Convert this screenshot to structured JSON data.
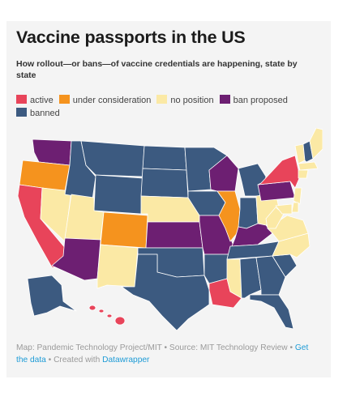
{
  "title": "Vaccine passports in the US",
  "subtitle": "How rollout—or bans—of vaccine credentials are happening, state by state",
  "legend": [
    {
      "label": "active",
      "color": "#e8445a"
    },
    {
      "label": "under consideration",
      "color": "#f5931e"
    },
    {
      "label": "no position",
      "color": "#fbe9a5"
    },
    {
      "label": "ban proposed",
      "color": "#6d1f72"
    },
    {
      "label": "banned",
      "color": "#3c5a80"
    }
  ],
  "states": [
    {
      "code": "WA",
      "status": "ban proposed"
    },
    {
      "code": "OR",
      "status": "under consideration"
    },
    {
      "code": "CA",
      "status": "active"
    },
    {
      "code": "NV",
      "status": "no position"
    },
    {
      "code": "ID",
      "status": "banned"
    },
    {
      "code": "MT",
      "status": "banned"
    },
    {
      "code": "WY",
      "status": "banned"
    },
    {
      "code": "UT",
      "status": "no position"
    },
    {
      "code": "AZ",
      "status": "ban proposed"
    },
    {
      "code": "CO",
      "status": "under consideration"
    },
    {
      "code": "NM",
      "status": "no position"
    },
    {
      "code": "ND",
      "status": "banned"
    },
    {
      "code": "SD",
      "status": "banned"
    },
    {
      "code": "NE",
      "status": "no position"
    },
    {
      "code": "KS",
      "status": "ban proposed"
    },
    {
      "code": "OK",
      "status": "banned"
    },
    {
      "code": "TX",
      "status": "banned"
    },
    {
      "code": "MN",
      "status": "banned"
    },
    {
      "code": "IA",
      "status": "banned"
    },
    {
      "code": "MO",
      "status": "ban proposed"
    },
    {
      "code": "AR",
      "status": "banned"
    },
    {
      "code": "LA",
      "status": "active"
    },
    {
      "code": "WI",
      "status": "ban proposed"
    },
    {
      "code": "IL",
      "status": "under consideration"
    },
    {
      "code": "MI",
      "status": "banned"
    },
    {
      "code": "IN",
      "status": "banned"
    },
    {
      "code": "OH",
      "status": "no position"
    },
    {
      "code": "KY",
      "status": "ban proposed"
    },
    {
      "code": "TN",
      "status": "banned"
    },
    {
      "code": "MS",
      "status": "no position"
    },
    {
      "code": "AL",
      "status": "banned"
    },
    {
      "code": "GA",
      "status": "banned"
    },
    {
      "code": "FL",
      "status": "banned"
    },
    {
      "code": "SC",
      "status": "banned"
    },
    {
      "code": "NC",
      "status": "no position"
    },
    {
      "code": "VA",
      "status": "no position"
    },
    {
      "code": "WV",
      "status": "no position"
    },
    {
      "code": "PA",
      "status": "ban proposed"
    },
    {
      "code": "NY",
      "status": "active"
    },
    {
      "code": "VT",
      "status": "no position"
    },
    {
      "code": "NH",
      "status": "banned"
    },
    {
      "code": "ME",
      "status": "no position"
    },
    {
      "code": "MA",
      "status": "no position"
    },
    {
      "code": "CT",
      "status": "no position"
    },
    {
      "code": "NJ",
      "status": "no position"
    },
    {
      "code": "DE",
      "status": "no position"
    },
    {
      "code": "MD",
      "status": "no position"
    },
    {
      "code": "AK",
      "status": "banned"
    },
    {
      "code": "HI",
      "status": "active"
    }
  ],
  "footer": {
    "source": "Map: Pandemic Technology Project/MIT • Source: MIT Technology Review •",
    "data_link": "Get the data",
    "created": "• Created with",
    "tool_link": "Datawrapper"
  }
}
